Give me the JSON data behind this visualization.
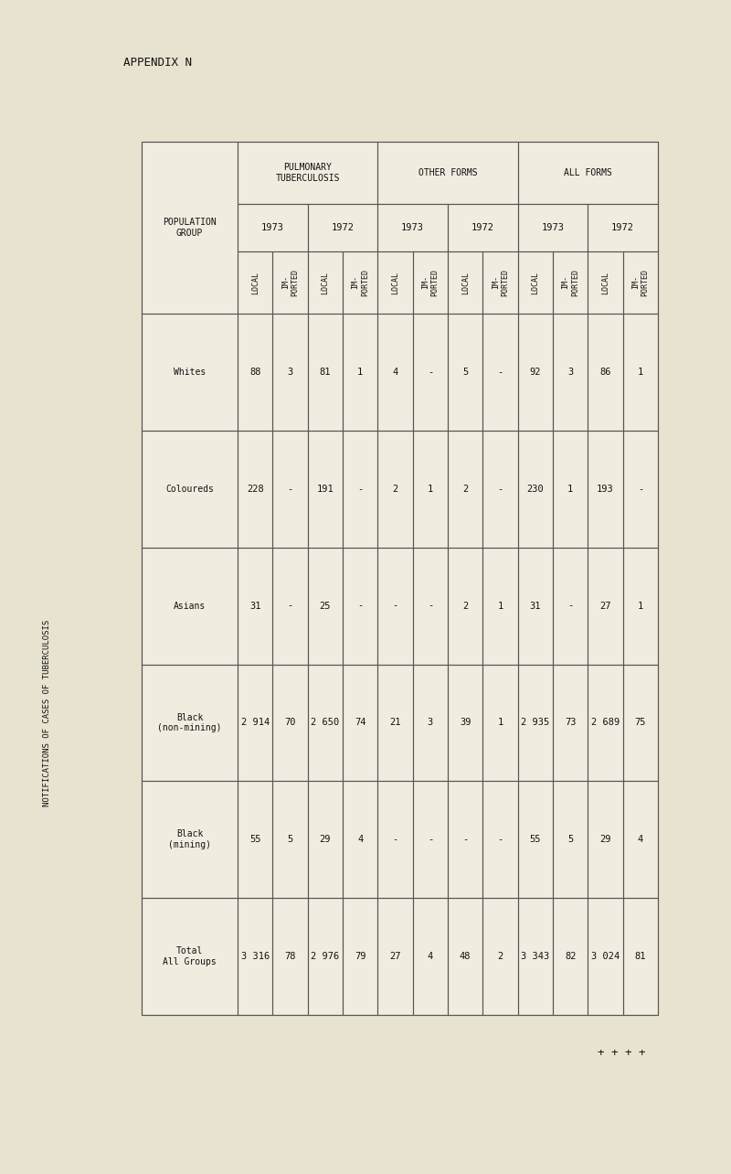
{
  "title": "NOTIFICATIONS OF CASES OF TUBERCULOSIS",
  "appendix": "APPENDIX N",
  "bg_color": "#e8e3d0",
  "table_bg": "#f0ede0",
  "populations": [
    "Whites",
    "Coloureds",
    "Asians",
    "Black\n(non-mining)",
    "Black\n(mining)",
    "Total\nAll Groups"
  ],
  "columns": {
    "pulmonary_1973_local": [
      "88",
      "228",
      "31",
      "2 914",
      "55",
      "3 316"
    ],
    "pulmonary_1973_imported": [
      "3",
      "-",
      "-",
      "70",
      "5",
      "78"
    ],
    "pulmonary_1972_local": [
      "81",
      "191",
      "25",
      "2 650",
      "29",
      "2 976"
    ],
    "pulmonary_1972_imported": [
      "1",
      "-",
      "-",
      "74",
      "4",
      "79"
    ],
    "other_1973_local": [
      "4",
      "2",
      "-",
      "21",
      "-",
      "27"
    ],
    "other_1973_imported": [
      "-",
      "1",
      "-",
      "3",
      "-",
      "4"
    ],
    "other_1972_local": [
      "5",
      "2",
      "2",
      "39",
      "-",
      "48"
    ],
    "other_1972_imported": [
      "-",
      "-",
      "1",
      "1",
      "-",
      "2"
    ],
    "all_1973_local": [
      "92",
      "230",
      "31",
      "2 935",
      "55",
      "3 343"
    ],
    "all_1973_imported": [
      "3",
      "1",
      "-",
      "73",
      "5",
      "82"
    ],
    "all_1972_local": [
      "86",
      "193",
      "27",
      "2 689",
      "29",
      "3 024"
    ],
    "all_1972_imported": [
      "1",
      "-",
      "1",
      "75",
      "4",
      "81"
    ]
  },
  "vertical_title": "NOTIFICATIONS OF CASES OF TUBERCULOSIS",
  "plus_text": "+ + + +",
  "line_color": "#555555",
  "text_color": "#111111"
}
